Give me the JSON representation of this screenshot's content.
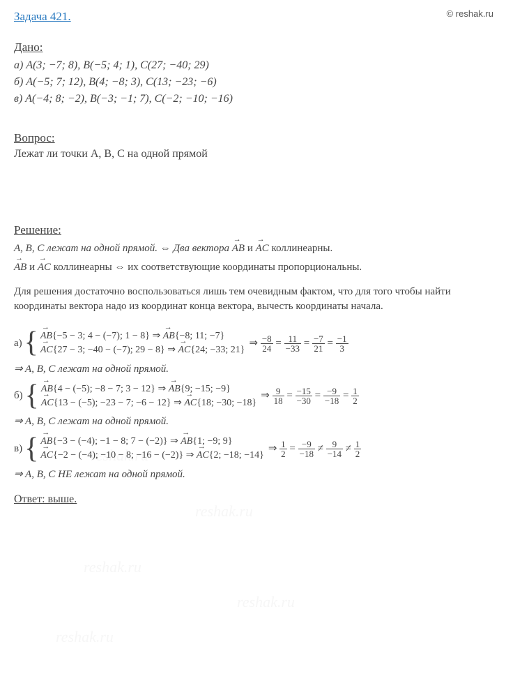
{
  "watermark": "© reshak.ru",
  "taskTitle": "Задача 421.",
  "given": {
    "label": "Дано:",
    "lines": [
      "а) A(3; −7; 8), B(−5; 4; 1), C(27; −40; 29)",
      "б) A(−5; 7; 12), B(4; −8; 3), C(13; −23; −6)",
      "в) A(−4; 8; −2), B(−3; −1; 7), C(−2; −10; −16)"
    ]
  },
  "question": {
    "label": "Вопрос:",
    "text": "Лежат ли точки A, B, C на одной прямой"
  },
  "solution": {
    "label": "Решение:",
    "line1_a": "A, B, C лежат на одной прямой. ⇔ Два вектора ",
    "line1_b": " и ",
    "line1_c": " коллинеарны.",
    "line2_a": " и ",
    "line2_b": " коллинеарны ⇔ их соответствующие координаты пропорциональны.",
    "explain": "Для решения достаточно воспользоваться лишь тем очевидным фактом, что для того чтобы найти координаты вектора надо из координат конца вектора, вычесть координаты начала."
  },
  "cases": {
    "a": {
      "letter": "а)",
      "row1": "{−5 − 3; 4 − (−7); 1 − 8} ⇒ ",
      "row1b": "{−8; 11; −7}",
      "row2": "{27 − 3; −40 − (−7); 29 − 8} ⇒ ",
      "row2b": "{24; −33; 21}",
      "frac1n": "−8",
      "frac1d": "24",
      "frac2n": "11",
      "frac2d": "−33",
      "frac3n": "−7",
      "frac3d": "21",
      "frac4n": "−1",
      "frac4d": "3",
      "conclusion": "⇒ A, B, C лежат на одной прямой."
    },
    "b": {
      "letter": "б)",
      "row1": "{4 − (−5); −8 − 7; 3 − 12} ⇒ ",
      "row1b": "{9; −15; −9}",
      "row2": "{13 − (−5); −23 − 7; −6 − 12} ⇒ ",
      "row2b": "{18; −30; −18}",
      "frac1n": "9",
      "frac1d": "18",
      "frac2n": "−15",
      "frac2d": "−30",
      "frac3n": "−9",
      "frac3d": "−18",
      "frac4n": "1",
      "frac4d": "2",
      "conclusion": "⇒ A, B, C лежат на одной прямой."
    },
    "c": {
      "letter": "в)",
      "row1": "{−3 − (−4); −1 − 8; 7 − (−2)} ⇒ ",
      "row1b": "{1; −9; 9}",
      "row2": "{−2 − (−4); −10 − 8; −16 − (−2)} ⇒ ",
      "row2b": "{2; −18; −14}",
      "frac1n": "1",
      "frac1d": "2",
      "frac2n": "−9",
      "frac2d": "−18",
      "frac3n": "9",
      "frac3d": "−14",
      "frac4n": "1",
      "frac4d": "2",
      "conclusion": "⇒ A, B, C НЕ лежат на одной прямой."
    }
  },
  "answer": {
    "label": "Ответ:",
    "text": " выше."
  },
  "vecAB": "AB",
  "vecAC": "AC",
  "arrow": "⇒",
  "eq": "=",
  "neq": "≠",
  "bgWatermark": "reshak.ru"
}
